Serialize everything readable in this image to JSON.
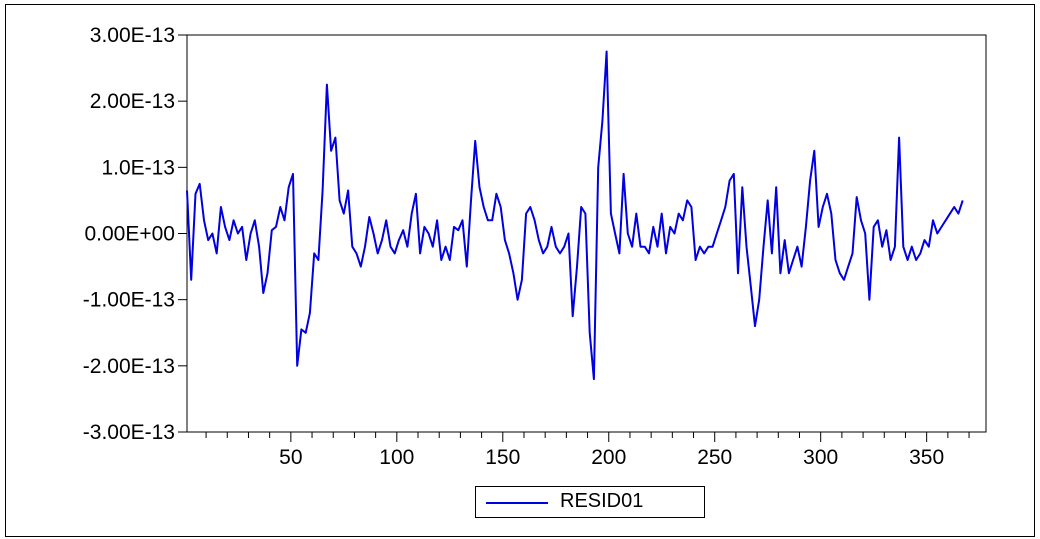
{
  "chart_data": {
    "type": "line",
    "title": "",
    "xlabel": "",
    "ylabel": "",
    "xlim": [
      1,
      378
    ],
    "ylim": [
      -3e-13,
      3e-13
    ],
    "x_ticks": [
      50,
      100,
      150,
      200,
      250,
      300,
      350
    ],
    "x_tick_labels": [
      "50",
      "100",
      "150",
      "200",
      "250",
      "300",
      "350"
    ],
    "y_ticks": [
      3e-13,
      2e-13,
      1e-13,
      0,
      -1e-13,
      -2e-13,
      -3e-13
    ],
    "y_tick_labels": [
      "3.00E-13",
      "2.00E-13",
      "1.0E-13",
      "0.00E+00",
      "-1.00E-13",
      "-2.00E-13",
      "-3.00E-13"
    ],
    "grid": false,
    "legend_position": "bottom-center",
    "line_color": "#0000e0",
    "series": [
      {
        "name": "RESID01",
        "x_start": 1,
        "x_step": 2,
        "values": [
          6.5e-14,
          -7e-14,
          6e-14,
          7.5e-14,
          2e-14,
          -1e-14,
          0,
          -3e-14,
          4e-14,
          1e-14,
          -1e-14,
          2e-14,
          0,
          1e-14,
          -4e-14,
          0,
          2e-14,
          -2e-14,
          -9e-14,
          -6e-14,
          5e-15,
          1e-14,
          4e-14,
          2e-14,
          7e-14,
          9e-14,
          -2e-13,
          -1.45e-13,
          -1.5e-13,
          -1.2e-13,
          -3e-14,
          -4e-14,
          6.5e-14,
          2.25e-13,
          1.25e-13,
          1.45e-13,
          5e-14,
          3e-14,
          6.5e-14,
          -2e-14,
          -3e-14,
          -5e-14,
          -2e-14,
          2.5e-14,
          0,
          -3e-14,
          -1e-14,
          2e-14,
          -2e-14,
          -3e-14,
          -1e-14,
          5e-15,
          -2e-14,
          3e-14,
          6e-14,
          -3e-14,
          1e-14,
          0,
          -2e-14,
          2e-14,
          -4e-14,
          -2e-14,
          -4e-14,
          1e-14,
          5e-15,
          2e-14,
          -5e-14,
          5e-14,
          1.4e-13,
          7e-14,
          4e-14,
          2e-14,
          2e-14,
          6e-14,
          4e-14,
          -1e-14,
          -3e-14,
          -6e-14,
          -1e-13,
          -7e-14,
          3e-14,
          4e-14,
          2e-14,
          -1e-14,
          -3e-14,
          -2e-14,
          1e-14,
          -2e-14,
          -3e-14,
          -2e-14,
          0,
          -1.25e-13,
          -5e-14,
          4e-14,
          3e-14,
          -1.5e-13,
          -2.2e-13,
          1e-13,
          1.7e-13,
          2.75e-13,
          3e-14,
          0,
          -3e-14,
          9e-14,
          0,
          -2e-14,
          3e-14,
          -2e-14,
          -2e-14,
          -3e-14,
          1e-14,
          -2e-14,
          3e-14,
          -3e-14,
          1e-14,
          0,
          3e-14,
          2e-14,
          5e-14,
          4e-14,
          -4e-14,
          -2e-14,
          -3e-14,
          -2e-14,
          -2e-14,
          0,
          2e-14,
          4e-14,
          8e-14,
          9e-14,
          -6e-14,
          7e-14,
          -2e-14,
          -8e-14,
          -1.4e-13,
          -1e-13,
          -2e-14,
          5e-14,
          -3e-14,
          7e-14,
          -6e-14,
          -1e-14,
          -6e-14,
          -4e-14,
          -2e-14,
          -5e-14,
          1e-14,
          8e-14,
          1.25e-13,
          1e-14,
          4e-14,
          6e-14,
          3e-14,
          -4e-14,
          -6e-14,
          -7e-14,
          -5e-14,
          -3e-14,
          5.5e-14,
          2e-14,
          0,
          -1e-13,
          1e-14,
          2e-14,
          -2e-14,
          5e-15,
          -4e-14,
          -2e-14,
          1.45e-13,
          -2e-14,
          -4e-14,
          -2e-14,
          -4e-14,
          -3e-14,
          -1e-14,
          -2e-14,
          2e-14,
          0,
          1e-14,
          2e-14,
          3e-14,
          4e-14,
          3e-14,
          5e-14
        ]
      }
    ]
  }
}
